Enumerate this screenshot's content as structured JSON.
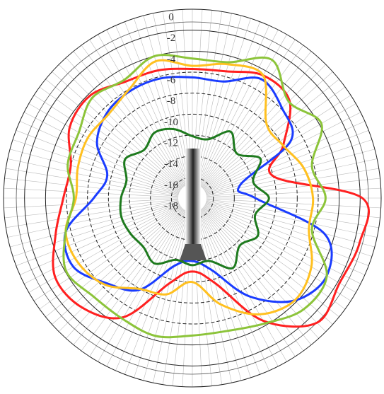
{
  "chart_data": {
    "type": "polar",
    "theta": [
      0,
      15,
      30,
      45,
      60,
      75,
      90,
      105,
      120,
      135,
      150,
      165,
      180,
      195,
      210,
      225,
      240,
      255,
      270,
      285,
      300,
      315,
      330,
      345
    ],
    "rlim": [
      -18,
      0
    ],
    "rticks": [
      0,
      -2,
      -4,
      -6,
      -8,
      -10,
      -12,
      -14,
      -16,
      -18
    ],
    "series": [
      {
        "color": "#ff2020",
        "values": [
          -5.7,
          -5.5,
          -4.5,
          -4.9,
          -8,
          -10,
          -1.8,
          -1.5,
          -1.8,
          -1.2,
          -4.5,
          -9.6,
          -11,
          -9.6,
          -4.9,
          -3.2,
          -2.9,
          -4.5,
          -5.7,
          -6,
          -4.5,
          -4.2,
          -5.2,
          -5.4
        ]
      },
      {
        "color": "#1a3cff",
        "values": [
          -6.5,
          -6.5,
          -4.9,
          -5.9,
          -7.2,
          -13.3,
          -12,
          -5,
          -3.2,
          -4.2,
          -7.2,
          -10.9,
          -12,
          -11.3,
          -7.9,
          -6.5,
          -4.9,
          -5.5,
          -8.6,
          -9.6,
          -7.5,
          -6.5,
          -6.2,
          -6.2
        ]
      },
      {
        "color": "#ffc020",
        "values": [
          -5.4,
          -4.8,
          -4.5,
          -8,
          -8,
          -7,
          -6.5,
          -6.5,
          -4.9,
          -4.2,
          -5.2,
          -7.5,
          -10,
          -8.5,
          -8,
          -6.3,
          -5.5,
          -5.5,
          -6.9,
          -6.7,
          -6.5,
          -6.7,
          -6,
          -4.5
        ]
      },
      {
        "color": "#8cc43a",
        "values": [
          -4.7,
          -4.6,
          -2.8,
          -5,
          -3.8,
          -6.2,
          -5.3,
          -6.2,
          -3.2,
          -3,
          -4.2,
          -4.9,
          -4.9,
          -4.4,
          -4.7,
          -4.7,
          -4.1,
          -5.5,
          -6.7,
          -5.7,
          -5.5,
          -4.5,
          -5,
          -4
        ]
      },
      {
        "color": "#1e7a1e",
        "values": [
          -12.1,
          -12.2,
          -10.7,
          -12,
          -10.5,
          -12,
          -10.7,
          -11.8,
          -10.8,
          -11.6,
          -10.3,
          -11.8,
          -11.6,
          -11.9,
          -10.8,
          -11.4,
          -11.2,
          -11,
          -11.2,
          -11.5,
          -10.6,
          -11.5,
          -10.8,
          -11.2
        ]
      }
    ]
  }
}
